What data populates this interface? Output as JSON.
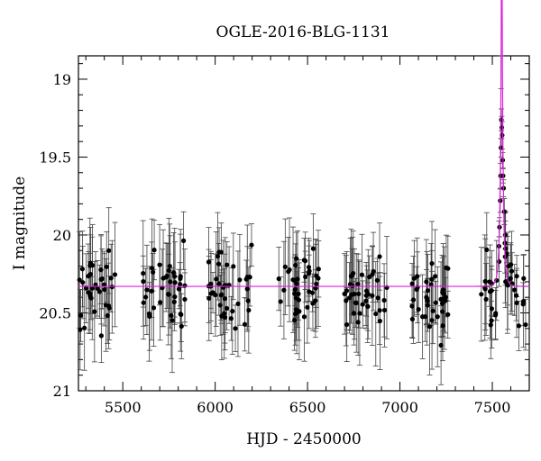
{
  "chart_data": {
    "type": "scatter",
    "title": "OGLE-2016-BLG-1131",
    "xlabel": "HJD - 2450000",
    "ylabel": "I magnitude",
    "xlim": [
      5260,
      7700
    ],
    "ylim": [
      21.0,
      18.85
    ],
    "y_inverted": true,
    "grid": false,
    "legend": "none",
    "x_ticks": [
      5500,
      6000,
      6500,
      7000,
      7500
    ],
    "x_tick_labels": [
      "5500",
      "6000",
      "6500",
      "7000",
      "7500"
    ],
    "y_ticks": [
      19,
      19.5,
      20,
      20.5,
      21
    ],
    "y_tick_labels": [
      "19",
      "19.5",
      "20",
      "20.5",
      "21"
    ],
    "baseline_mag": 20.33,
    "colors": {
      "points": "#000000",
      "model": "#dd22dd",
      "errorbars": "#444444"
    },
    "series": [
      {
        "kind": "observations",
        "seasons": [
          {
            "start": 5260,
            "end": 5460,
            "mean": 20.35,
            "count": 40
          },
          {
            "start": 5610,
            "end": 5840,
            "mean": 20.33,
            "count": 40
          },
          {
            "start": 5960,
            "end": 6200,
            "mean": 20.33,
            "count": 40
          },
          {
            "start": 6330,
            "end": 6560,
            "mean": 20.35,
            "count": 40
          },
          {
            "start": 6700,
            "end": 6930,
            "mean": 20.38,
            "count": 40
          },
          {
            "start": 7060,
            "end": 7260,
            "mean": 20.38,
            "count": 40
          },
          {
            "start": 7440,
            "end": 7700,
            "mean": 20.42,
            "count": 40
          }
        ],
        "highlight_points": [
          {
            "x": 7549,
            "y": 19.26
          },
          {
            "x": 7551,
            "y": 19.31
          },
          {
            "x": 7553,
            "y": 19.36
          },
          {
            "x": 7547,
            "y": 19.44
          },
          {
            "x": 7556,
            "y": 19.52
          },
          {
            "x": 7545,
            "y": 19.62
          },
          {
            "x": 7558,
            "y": 19.62
          },
          {
            "x": 7543,
            "y": 19.78
          },
          {
            "x": 7561,
            "y": 19.7
          },
          {
            "x": 7565,
            "y": 19.85
          },
          {
            "x": 7539,
            "y": 19.95
          },
          {
            "x": 7570,
            "y": 20.0
          },
          {
            "x": 7578,
            "y": 20.12
          },
          {
            "x": 7588,
            "y": 20.2
          }
        ]
      },
      {
        "kind": "model",
        "t0": 7551,
        "tE": 14,
        "u0": 0.08
      }
    ]
  }
}
